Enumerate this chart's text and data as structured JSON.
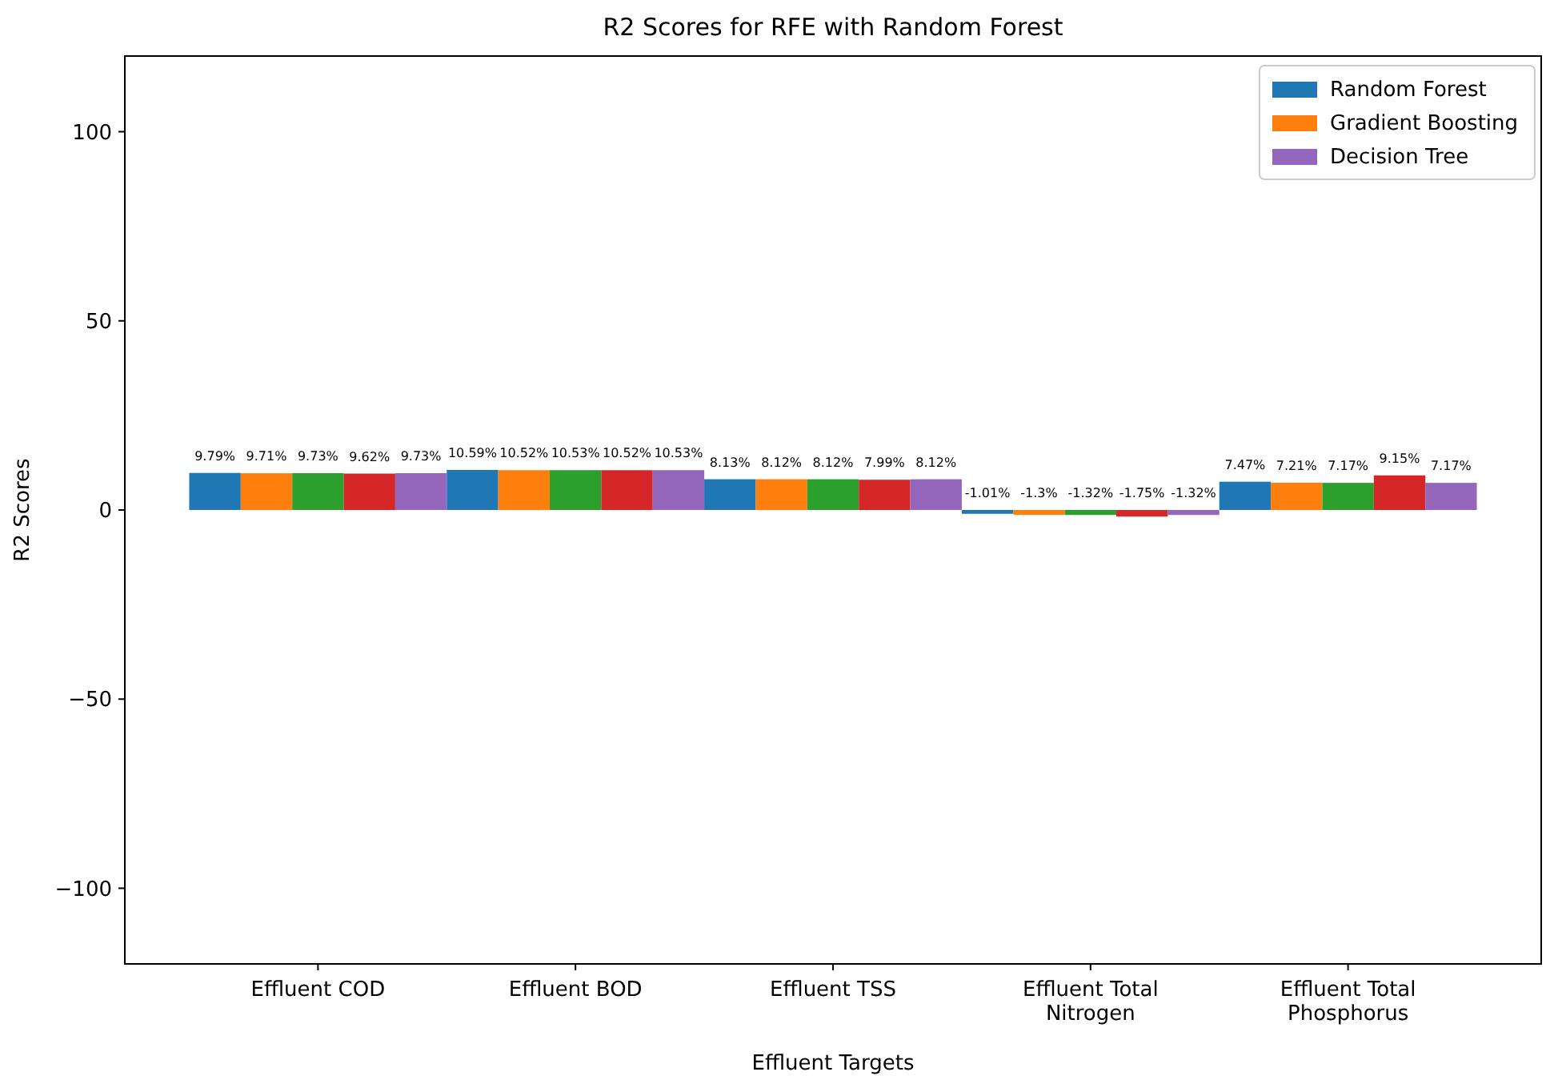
{
  "chart_data": {
    "type": "bar",
    "title": "R2 Scores for RFE with Random Forest",
    "xlabel": "Effluent Targets",
    "ylabel": "R2 Scores",
    "categories": [
      "Effluent COD",
      "Effluent BOD",
      "Effluent TSS",
      "Effluent Total Nitrogen",
      "Effluent Total Phosphorus"
    ],
    "series": [
      {
        "name": "Random Forest",
        "color": "#1f77b4",
        "values": [
          9.79,
          10.59,
          8.13,
          -1.01,
          7.47
        ],
        "value_labels": [
          "9.79%",
          "10.59%",
          "8.13%",
          "-1.01%",
          "7.47%"
        ]
      },
      {
        "name": "Gradient Boosting",
        "color": "#ff7f0e",
        "values": [
          9.71,
          10.52,
          8.12,
          -1.3,
          7.21
        ],
        "value_labels": [
          "9.71%",
          "10.52%",
          "8.12%",
          "-1.3%",
          "7.21%"
        ]
      },
      {
        "color": "#2ca02c",
        "values": [
          9.73,
          10.53,
          8.12,
          -1.32,
          7.17
        ],
        "value_labels": [
          "9.73%",
          "10.53%",
          "8.12%",
          "-1.32%",
          "7.17%"
        ]
      },
      {
        "color": "#d62728",
        "values": [
          9.62,
          10.52,
          7.99,
          -1.75,
          9.15
        ],
        "value_labels": [
          "9.62%",
          "10.52%",
          "7.99%",
          "-1.75%",
          "9.15%"
        ]
      },
      {
        "name": "Decision Tree",
        "color": "#9467bd",
        "values": [
          9.73,
          10.53,
          8.12,
          -1.32,
          7.17
        ],
        "value_labels": [
          "9.73%",
          "10.53%",
          "8.12%",
          "-1.32%",
          "7.17%"
        ]
      }
    ],
    "ylim": [
      -120,
      120
    ],
    "yticks": [
      {
        "value": -100,
        "label": "−100"
      },
      {
        "value": -50,
        "label": "−50"
      },
      0,
      50,
      100
    ],
    "legend": "top right",
    "grid": false
  }
}
